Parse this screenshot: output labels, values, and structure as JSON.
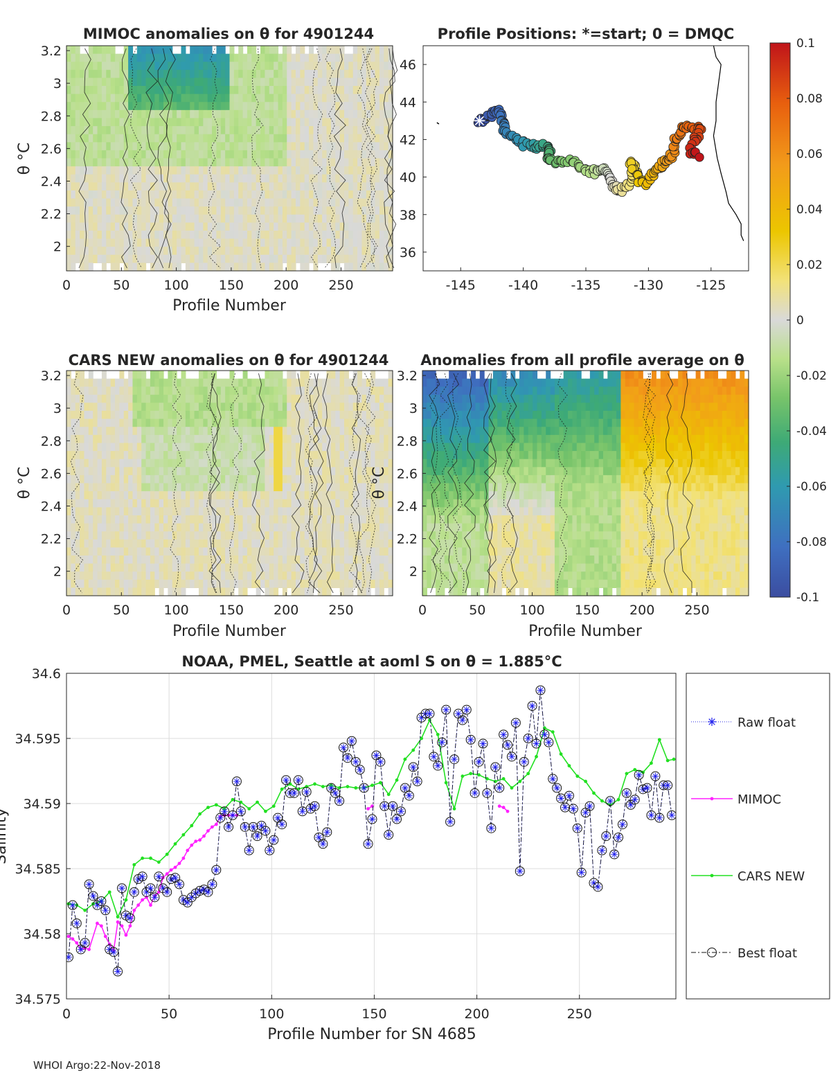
{
  "float_id": "4901244",
  "footer": "WHOI Argo:22-Nov-2018",
  "chart_data": [
    {
      "id": "mimoc",
      "type": "heatmap",
      "title": "MIMOC anomalies on θ  for 4901244",
      "xlabel": "Profile Number",
      "ylabel": "θ °C",
      "xlim": [
        0,
        297
      ],
      "ylim": [
        1.85,
        3.23
      ],
      "xticks": [
        "0",
        "50",
        "100",
        "150",
        "200",
        "250"
      ],
      "yticks": [
        "2",
        "2.2",
        "2.4",
        "2.6",
        "2.8",
        "3",
        "3.2"
      ],
      "pattern": "mostly near zero (grey) with light-green negative anomalies at top, green/teal patches between profiles 60-150 near 3.0-3.2 °C"
    },
    {
      "id": "positions",
      "type": "scatter",
      "title": "Profile Positions: *=start; 0 = DMQC",
      "xlim": [
        -148,
        -122
      ],
      "ylim": [
        35,
        47
      ],
      "xticks": [
        "-145",
        "-140",
        "-135",
        "-130",
        "-125"
      ],
      "yticks": [
        "36",
        "38",
        "40",
        "42",
        "44",
        "46"
      ],
      "start": [
        -143.5,
        43.0
      ],
      "track": [
        [
          -143.5,
          43.0
        ],
        [
          -142.8,
          43.2
        ],
        [
          -142.2,
          43.6
        ],
        [
          -141.8,
          43.4
        ],
        [
          -141.6,
          42.9
        ],
        [
          -141.4,
          42.4
        ],
        [
          -140.6,
          42.0
        ],
        [
          -139.8,
          41.7
        ],
        [
          -139.0,
          41.6
        ],
        [
          -138.3,
          41.8
        ],
        [
          -137.8,
          41.5
        ],
        [
          -138.2,
          41.0
        ],
        [
          -137.6,
          40.8
        ],
        [
          -136.5,
          40.9
        ],
        [
          -135.5,
          40.6
        ],
        [
          -134.6,
          40.2
        ],
        [
          -133.8,
          40.5
        ],
        [
          -133.2,
          40.2
        ],
        [
          -132.8,
          39.6
        ],
        [
          -132.4,
          39.2
        ],
        [
          -131.6,
          39.6
        ],
        [
          -131.0,
          40.4
        ],
        [
          -131.4,
          40.8
        ],
        [
          -130.8,
          39.8
        ],
        [
          -130.2,
          39.6
        ],
        [
          -129.6,
          40.2
        ],
        [
          -129.0,
          40.6
        ],
        [
          -128.6,
          40.9
        ],
        [
          -128.0,
          41.2
        ],
        [
          -127.8,
          42.0
        ],
        [
          -127.4,
          42.6
        ],
        [
          -126.6,
          42.7
        ],
        [
          -125.9,
          42.6
        ],
        [
          -126.2,
          42.0
        ],
        [
          -126.6,
          41.4
        ],
        [
          -126.0,
          41.2
        ]
      ],
      "coast": [
        [
          -124.8,
          47.0
        ],
        [
          -124.6,
          46.4
        ],
        [
          -124.2,
          46.0
        ],
        [
          -124.4,
          45.0
        ],
        [
          -124.6,
          44.0
        ],
        [
          -124.6,
          43.0
        ],
        [
          -124.8,
          42.2
        ],
        [
          -124.5,
          41.0
        ],
        [
          -124.2,
          40.2
        ],
        [
          -123.8,
          39.2
        ],
        [
          -123.6,
          38.6
        ],
        [
          -123.0,
          38.0
        ],
        [
          -122.6,
          37.5
        ],
        [
          -122.6,
          36.9
        ],
        [
          -122.4,
          36.6
        ]
      ]
    },
    {
      "id": "colorbar",
      "type": "heatmap",
      "range": [
        -0.1,
        0.1
      ],
      "ticks": [
        "0.1",
        "0.08",
        "0.06",
        "0.04",
        "0.02",
        "0",
        "-0.02",
        "-0.04",
        "-0.06",
        "-0.08",
        "-0.1"
      ],
      "colors": [
        "#3b4da0",
        "#3f6fc0",
        "#2f9ab0",
        "#3eaa76",
        "#78c46a",
        "#b9e08a",
        "#d9d9d9",
        "#f2e27a",
        "#ecc600",
        "#f29b1a",
        "#e8600e",
        "#c0141a"
      ]
    },
    {
      "id": "cars",
      "type": "heatmap",
      "title": "CARS NEW anomalies on θ for 4901244",
      "xlabel": "Profile Number",
      "ylabel": "θ °C",
      "xlim": [
        0,
        297
      ],
      "ylim": [
        1.85,
        3.23
      ],
      "xticks": [
        "0",
        "50",
        "100",
        "150",
        "200",
        "250"
      ],
      "yticks": [
        "2",
        "2.2",
        "2.4",
        "2.6",
        "2.8",
        "3",
        "3.2"
      ]
    },
    {
      "id": "allavg",
      "type": "heatmap",
      "title": "Anomalies from all profile average on θ",
      "xlabel": "Profile Number",
      "ylabel": "θ °C",
      "xlim": [
        0,
        297
      ],
      "ylim": [
        1.85,
        3.23
      ],
      "xticks": [
        "0",
        "50",
        "100",
        "150",
        "200",
        "250"
      ],
      "yticks": [
        "2",
        "2.2",
        "2.4",
        "2.6",
        "2.8",
        "3",
        "3.2"
      ],
      "pattern": "blue/teal negative anomaly at top for profiles 0-120, green middle, yellow/orange positive anomaly for profiles 185-297"
    },
    {
      "id": "salinity",
      "type": "line",
      "title": "NOAA, PMEL, Seattle at aoml S on θ = 1.885°C",
      "xlabel": "Profile Number for SN 4685",
      "ylabel": "Salinity",
      "xlim": [
        0,
        297
      ],
      "ylim": [
        34.575,
        34.6
      ],
      "xticks": [
        "0",
        "50",
        "100",
        "150",
        "200",
        "250"
      ],
      "yticks": [
        "34.575",
        "34.58",
        "34.585",
        "34.59",
        "34.595",
        "34.6"
      ],
      "legend": [
        "Raw float",
        "MIMOC",
        "CARS NEW",
        "Best float"
      ],
      "series": [
        {
          "name": "Best float",
          "x": [
            1,
            3,
            5,
            7,
            9,
            11,
            13,
            15,
            17,
            19,
            21,
            23,
            25,
            27,
            29,
            31,
            33,
            35,
            37,
            39,
            41,
            43,
            45,
            47,
            49,
            51,
            53,
            55,
            57,
            59,
            61,
            63,
            65,
            67,
            69,
            71,
            73,
            75,
            77,
            79,
            81,
            83,
            85,
            87,
            89,
            91,
            93,
            95,
            97,
            99,
            101,
            103,
            105,
            107,
            109,
            111,
            113,
            115,
            117,
            119,
            121,
            123,
            125,
            127,
            129,
            131,
            133,
            135,
            137,
            139,
            141,
            143,
            145,
            147,
            149,
            151,
            153,
            155,
            157,
            159,
            161,
            163,
            165,
            167,
            169,
            171,
            173,
            175,
            177,
            179,
            181,
            183,
            185,
            187,
            189,
            191,
            193,
            195,
            197,
            199,
            201,
            203,
            205,
            207,
            209,
            211,
            213,
            215,
            217,
            219,
            221,
            223,
            225,
            227,
            229,
            231,
            233,
            235,
            237,
            239,
            241,
            243,
            245,
            247,
            249,
            251,
            253,
            255,
            257,
            259,
            261,
            263,
            265,
            267,
            269,
            271,
            273,
            275,
            277,
            279,
            281,
            283,
            285,
            287,
            289,
            291,
            293,
            295
          ],
          "values": [
            34.5782,
            34.5822,
            34.5808,
            34.5788,
            34.5793,
            34.5838,
            34.5829,
            34.5822,
            34.5825,
            34.5818,
            34.5788,
            34.5786,
            34.5771,
            34.5835,
            34.5814,
            34.5812,
            34.5832,
            34.5842,
            34.5844,
            34.5832,
            34.5835,
            34.5828,
            34.5844,
            34.5835,
            34.5832,
            34.5842,
            34.5843,
            34.5838,
            34.5826,
            34.5824,
            34.5828,
            34.5831,
            34.5833,
            34.5834,
            34.5832,
            34.5838,
            34.5849,
            34.5889,
            34.5894,
            34.5882,
            34.5891,
            34.5917,
            34.5894,
            34.5882,
            34.5864,
            34.5882,
            34.5875,
            34.5883,
            34.5879,
            34.5864,
            34.5872,
            34.5889,
            34.5884,
            34.5918,
            34.5908,
            34.5908,
            34.5918,
            34.5894,
            34.5909,
            34.5896,
            34.5898,
            34.5874,
            34.5869,
            34.5878,
            34.5912,
            34.5908,
            34.5902,
            34.5943,
            34.5935,
            34.5948,
            34.5932,
            34.5926,
            34.5912,
            34.5869,
            34.5888,
            34.5937,
            34.5932,
            34.5898,
            34.5876,
            34.5898,
            34.5888,
            34.5894,
            34.5912,
            34.5906,
            34.5928,
            34.5917,
            34.5966,
            34.5969,
            34.5969,
            34.5936,
            34.5929,
            34.5947,
            34.5972,
            34.5886,
            34.5934,
            34.5969,
            34.5964,
            34.5972,
            34.5949,
            34.5908,
            34.5932,
            34.5946,
            34.5908,
            34.5881,
            34.5928,
            34.5912,
            34.5953,
            34.5945,
            34.5936,
            34.5962,
            34.5848,
            34.5932,
            34.595,
            34.5975,
            34.5946,
            34.5987,
            34.5953,
            34.5947,
            34.5919,
            34.5912,
            34.5904,
            34.5897,
            34.5906,
            34.5896,
            34.5881,
            34.5847,
            34.5893,
            34.5898,
            34.5839,
            34.5836,
            34.5864,
            34.5875,
            34.5902,
            34.5861,
            34.5874,
            34.5884,
            34.5908,
            34.5899,
            34.5903,
            34.5922,
            34.5911,
            34.5912,
            34.5891,
            34.5921,
            34.5889,
            34.5914,
            34.5914,
            34.5891
          ]
        },
        {
          "name": "MIMOC",
          "x": [
            1,
            3,
            5,
            7,
            9,
            11,
            15,
            17,
            19,
            21,
            23,
            25,
            27,
            29,
            31,
            33,
            35,
            37,
            39,
            41,
            43,
            45,
            47,
            49,
            51,
            53,
            55,
            57,
            59,
            61,
            63,
            65,
            67,
            69,
            71,
            73,
            75,
            77,
            79,
            81,
            83,
            147,
            149,
            211,
            213,
            215
          ],
          "values": [
            34.5798,
            34.5796,
            34.5793,
            34.5788,
            34.5789,
            34.5788,
            34.5808,
            34.5806,
            34.5798,
            34.5792,
            34.5787,
            34.5809,
            34.5806,
            34.5799,
            34.5806,
            34.5818,
            34.5822,
            34.5826,
            34.5828,
            34.5822,
            34.5829,
            34.5832,
            34.5843,
            34.5846,
            34.5849,
            34.5851,
            34.5854,
            34.5858,
            34.5864,
            34.5868,
            34.5871,
            34.5872,
            34.5875,
            34.5879,
            34.5882,
            34.5884,
            34.589,
            34.5891,
            34.5891,
            34.5891,
            34.5891,
            34.5896,
            34.5898,
            34.5898,
            34.5897,
            34.5894
          ]
        },
        {
          "name": "CARS NEW",
          "x": [
            1,
            5,
            9,
            13,
            17,
            21,
            25,
            29,
            33,
            37,
            41,
            45,
            49,
            53,
            57,
            61,
            65,
            69,
            73,
            77,
            81,
            85,
            89,
            93,
            97,
            101,
            105,
            109,
            113,
            117,
            121,
            125,
            129,
            133,
            137,
            141,
            145,
            149,
            153,
            157,
            161,
            165,
            169,
            173,
            177,
            181,
            185,
            189,
            193,
            197,
            201,
            205,
            209,
            213,
            217,
            221,
            225,
            229,
            233,
            237,
            241,
            245,
            249,
            253,
            257,
            261,
            265,
            269,
            273,
            277,
            281,
            285,
            289,
            293,
            296
          ],
          "values": [
            34.5823,
            34.5822,
            34.5818,
            34.5823,
            34.5825,
            34.5832,
            34.5813,
            34.5826,
            34.5853,
            34.5858,
            34.5858,
            34.5855,
            34.5861,
            34.5869,
            34.5876,
            34.5883,
            34.5892,
            34.5897,
            34.5899,
            34.5896,
            34.5903,
            34.5901,
            34.5896,
            34.5901,
            34.5894,
            34.5898,
            34.5911,
            34.5915,
            34.5911,
            34.5913,
            34.5915,
            34.5913,
            34.5914,
            34.5912,
            34.5913,
            34.5912,
            34.5912,
            34.5914,
            34.5916,
            34.5907,
            34.5918,
            34.5934,
            34.5941,
            34.595,
            34.5964,
            34.5953,
            34.5916,
            34.5896,
            34.5921,
            34.5923,
            34.5922,
            34.5919,
            34.5917,
            34.5919,
            34.5912,
            34.5917,
            34.5923,
            34.5936,
            34.5958,
            34.5955,
            34.5938,
            34.5929,
            34.5921,
            34.5917,
            34.5908,
            34.5902,
            34.5899,
            34.5903,
            34.5923,
            34.5926,
            34.5924,
            34.5931,
            34.5949,
            34.5933,
            34.5934
          ]
        }
      ]
    }
  ]
}
